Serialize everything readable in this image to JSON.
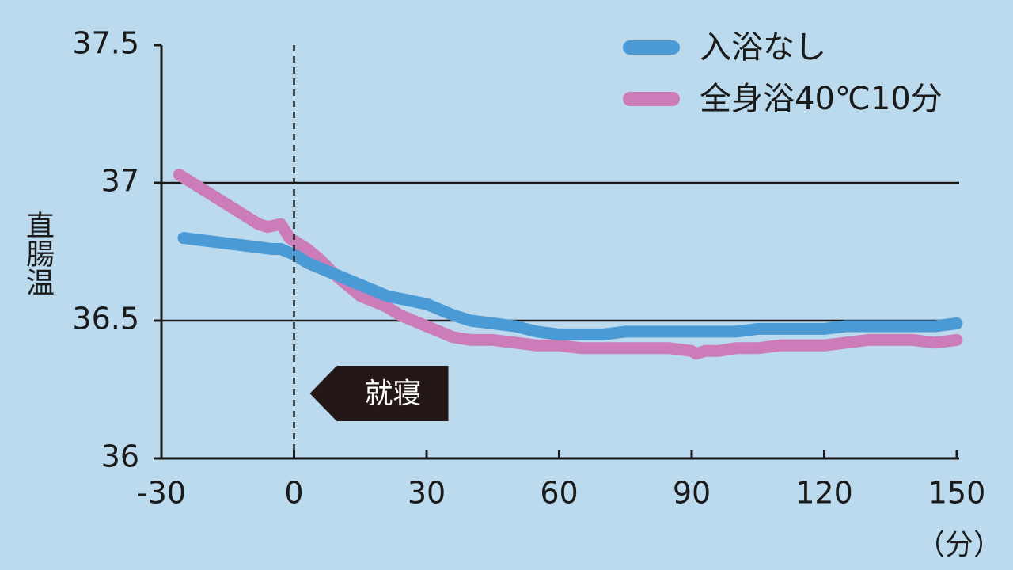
{
  "chart_data": {
    "type": "line",
    "title": "",
    "xlabel": "（分）",
    "ylabel": "直腸温",
    "xlim": [
      -30,
      150
    ],
    "ylim": [
      36,
      37.5
    ],
    "x_ticks": [
      -30,
      0,
      30,
      60,
      90,
      120,
      150
    ],
    "y_ticks": [
      36,
      36.5,
      37,
      37.5
    ],
    "x_tick_labels": [
      "-30",
      "0",
      "30",
      "60",
      "90",
      "120",
      "150"
    ],
    "y_tick_labels": [
      "36",
      "36.5",
      "37",
      "37.5"
    ],
    "gridlines_y": [
      36.5,
      37
    ],
    "legend_position": "top-right",
    "series": [
      {
        "name": "入浴なし",
        "color": "#4a9ad6",
        "x": [
          -25,
          -20,
          -15,
          -10,
          -5,
          -3,
          0,
          3,
          6,
          9,
          12,
          15,
          18,
          21,
          24,
          27,
          30,
          33,
          36,
          40,
          45,
          50,
          55,
          60,
          65,
          70,
          75,
          80,
          85,
          90,
          95,
          100,
          105,
          110,
          115,
          120,
          125,
          130,
          135,
          140,
          145,
          150
        ],
        "y": [
          36.8,
          36.79,
          36.78,
          36.77,
          36.76,
          36.76,
          36.74,
          36.71,
          36.69,
          36.67,
          36.65,
          36.63,
          36.61,
          36.59,
          36.58,
          36.57,
          36.56,
          36.54,
          36.52,
          36.5,
          36.49,
          36.48,
          36.46,
          36.45,
          36.45,
          36.45,
          36.46,
          36.46,
          36.46,
          36.46,
          36.46,
          36.46,
          36.47,
          36.47,
          36.47,
          36.47,
          36.48,
          36.48,
          36.48,
          36.48,
          36.48,
          36.49
        ]
      },
      {
        "name": "全身浴40℃10分",
        "color": "#cc7cb9",
        "x": [
          -26,
          -23,
          -20,
          -17,
          -14,
          -11,
          -8,
          -6,
          -3,
          -1,
          1,
          3,
          6,
          9,
          12,
          15,
          18,
          21,
          24,
          27,
          30,
          33,
          36,
          40,
          45,
          50,
          55,
          60,
          65,
          70,
          75,
          80,
          85,
          90,
          91,
          93,
          96,
          100,
          105,
          110,
          115,
          120,
          125,
          130,
          135,
          140,
          145,
          150
        ],
        "y": [
          37.03,
          37.0,
          36.97,
          36.94,
          36.91,
          36.88,
          36.85,
          36.84,
          36.85,
          36.8,
          36.78,
          36.76,
          36.72,
          36.67,
          36.63,
          36.59,
          36.57,
          36.55,
          36.52,
          36.5,
          36.48,
          36.46,
          36.44,
          36.43,
          36.43,
          36.42,
          36.41,
          36.41,
          36.4,
          36.4,
          36.4,
          36.4,
          36.4,
          36.39,
          36.38,
          36.39,
          36.39,
          36.4,
          36.4,
          36.41,
          36.41,
          36.41,
          36.42,
          36.43,
          36.43,
          36.43,
          36.42,
          36.43
        ]
      }
    ],
    "annotations": [
      {
        "x": 0,
        "label": "就寝",
        "style": "dashed-vertical"
      }
    ]
  }
}
